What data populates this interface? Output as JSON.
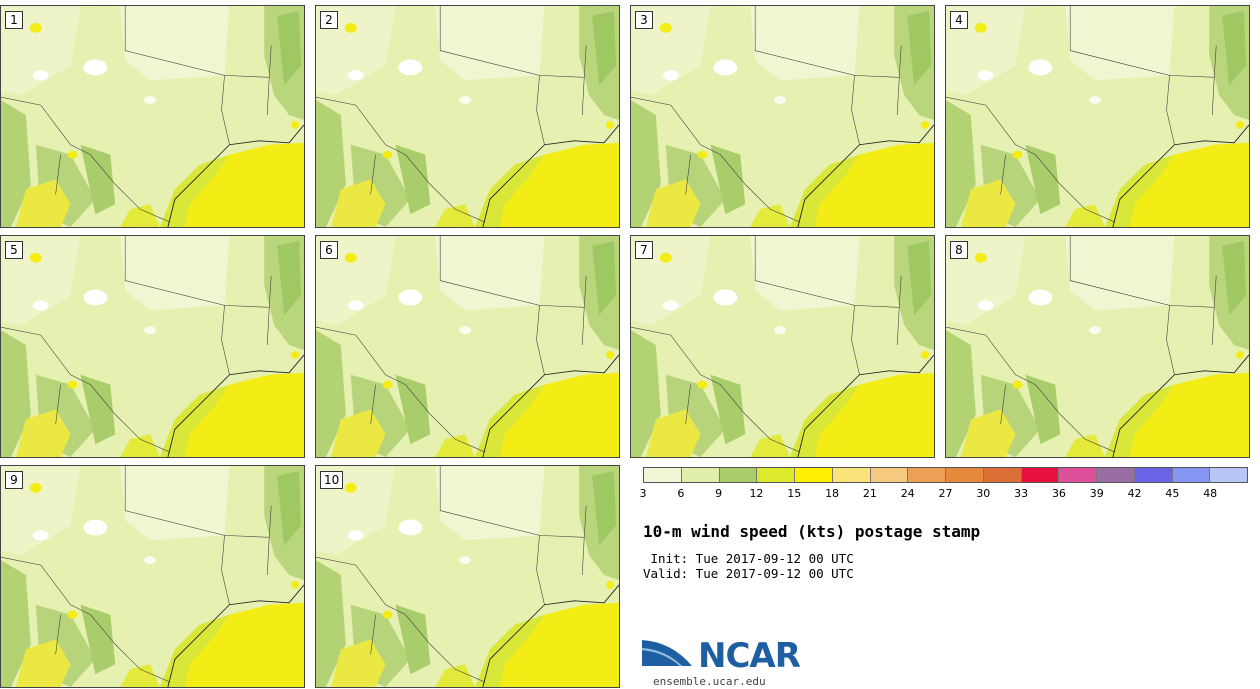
{
  "panels": [
    {
      "label": "1"
    },
    {
      "label": "2"
    },
    {
      "label": "3"
    },
    {
      "label": "4"
    },
    {
      "label": "5"
    },
    {
      "label": "6"
    },
    {
      "label": "7"
    },
    {
      "label": "8"
    },
    {
      "label": "9"
    },
    {
      "label": "10"
    }
  ],
  "colorbar": {
    "colors": [
      "#f3f6d6",
      "#dfeeaa",
      "#a8cd6a",
      "#dcea2b",
      "#fdf002",
      "#fbe37c",
      "#f5c97f",
      "#eba055",
      "#e58a3d",
      "#da6e34",
      "#e8103e",
      "#e0509a",
      "#9a6ea4",
      "#6b64e6",
      "#8496f1",
      "#b8c6f5"
    ],
    "ticks": [
      "3",
      "6",
      "9",
      "12",
      "15",
      "18",
      "21",
      "24",
      "27",
      "30",
      "33",
      "36",
      "39",
      "42",
      "45",
      "48"
    ]
  },
  "title": "10-m wind speed (kts) postage stamp",
  "init": " Init: Tue 2017-09-12 00 UTC",
  "valid": "Valid: Tue 2017-09-12 00 UTC",
  "logo": {
    "text": "NCAR",
    "url": "ensemble.ucar.edu",
    "color": "#1d5fa1"
  }
}
